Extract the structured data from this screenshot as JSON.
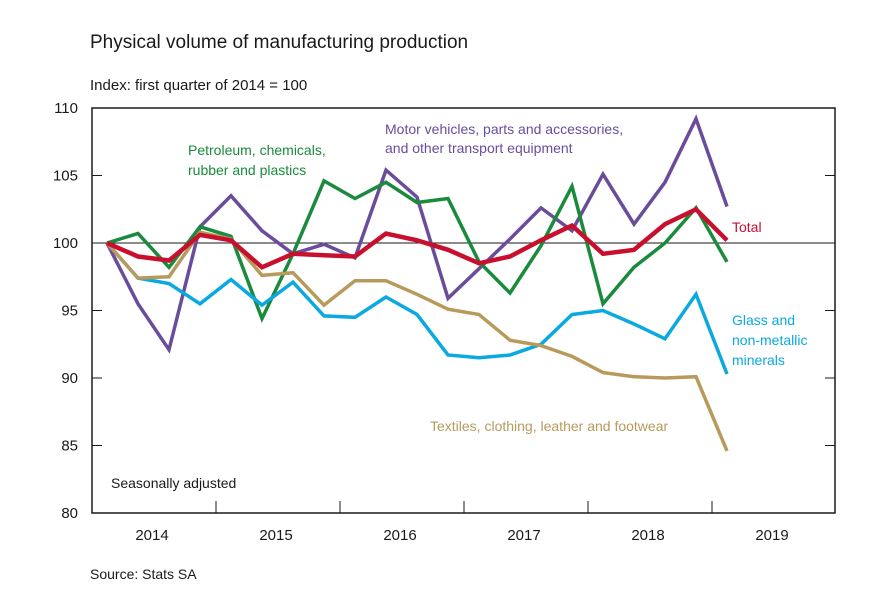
{
  "title": "Physical volume of manufacturing production",
  "subtitle": "Index: first quarter of 2014 = 100",
  "source": "Source: Stats SA",
  "chart_data": {
    "type": "line",
    "x": [
      "2014Q1",
      "2014Q2",
      "2014Q3",
      "2014Q4",
      "2015Q1",
      "2015Q2",
      "2015Q3",
      "2015Q4",
      "2016Q1",
      "2016Q2",
      "2016Q3",
      "2016Q4",
      "2017Q1",
      "2017Q2",
      "2017Q3",
      "2017Q4",
      "2018Q1",
      "2018Q2",
      "2018Q3",
      "2018Q4",
      "2019Q1"
    ],
    "x_tick_labels": [
      "2014",
      "2015",
      "2016",
      "2017",
      "2018",
      "2019"
    ],
    "ylim": [
      80,
      110
    ],
    "y_ticks": [
      80,
      85,
      90,
      95,
      100,
      105,
      110
    ],
    "reference_line": 100,
    "annotation": "Seasonally adjusted",
    "series": [
      {
        "name": "Motor vehicles, parts and accessories, and other transport equipment",
        "color": "#6b4c9a",
        "values": [
          100,
          95.5,
          92.1,
          101.2,
          103.5,
          100.9,
          99.2,
          99.9,
          98.9,
          105.4,
          103.4,
          95.9,
          98.1,
          100.3,
          102.6,
          100.9,
          105.1,
          101.4,
          104.5,
          109.2,
          102.7
        ]
      },
      {
        "name": "Petroleum, chemicals, rubber and plastics",
        "color": "#1a8a3c",
        "values": [
          100,
          100.7,
          98.2,
          101.2,
          100.5,
          94.4,
          99.2,
          104.6,
          103.3,
          104.5,
          103.0,
          103.3,
          98.6,
          96.3,
          99.8,
          104.2,
          95.5,
          98.2,
          100.0,
          102.6,
          98.6
        ]
      },
      {
        "name": "Total",
        "color": "#c8102e",
        "values": [
          100,
          99.0,
          98.7,
          100.6,
          100.2,
          98.2,
          99.2,
          99.1,
          99.0,
          100.7,
          100.2,
          99.5,
          98.5,
          99.0,
          100.2,
          101.3,
          99.2,
          99.5,
          101.4,
          102.5,
          100.2
        ]
      },
      {
        "name": "Glass and non-metallic minerals",
        "color": "#0aa9e0",
        "values": [
          100,
          97.4,
          97.0,
          95.5,
          97.3,
          95.4,
          97.1,
          94.6,
          94.5,
          96.0,
          94.7,
          91.7,
          91.5,
          91.7,
          92.5,
          94.7,
          95.0,
          94.0,
          92.9,
          96.2,
          90.3
        ]
      },
      {
        "name": "Textiles, clothing, leather and footwear",
        "color": "#b89a5c",
        "values": [
          100,
          97.4,
          97.5,
          100.8,
          100.3,
          97.6,
          97.8,
          95.4,
          97.2,
          97.2,
          96.2,
          95.1,
          94.7,
          92.8,
          92.4,
          91.6,
          90.4,
          90.1,
          90.0,
          90.1,
          84.6
        ]
      }
    ]
  }
}
